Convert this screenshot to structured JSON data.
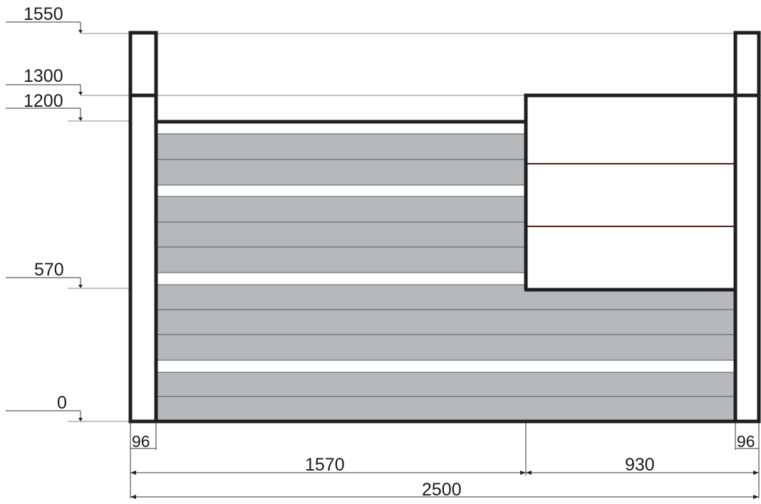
{
  "levels": [
    {
      "id": "l1550",
      "label": "1550"
    },
    {
      "id": "l1300",
      "label": "1300"
    },
    {
      "id": "l1200",
      "label": "1200"
    },
    {
      "id": "l570",
      "label": "570"
    },
    {
      "id": "l0",
      "label": "0"
    }
  ],
  "widths": {
    "post_left": "96",
    "post_right": "96",
    "left_section": "1570",
    "right_section": "930",
    "total": "2500"
  },
  "colors": {
    "slat_fill": "#b6b9bc",
    "frame_stroke": "#1f1f1f",
    "panel_divider": "#5a1a1a"
  }
}
